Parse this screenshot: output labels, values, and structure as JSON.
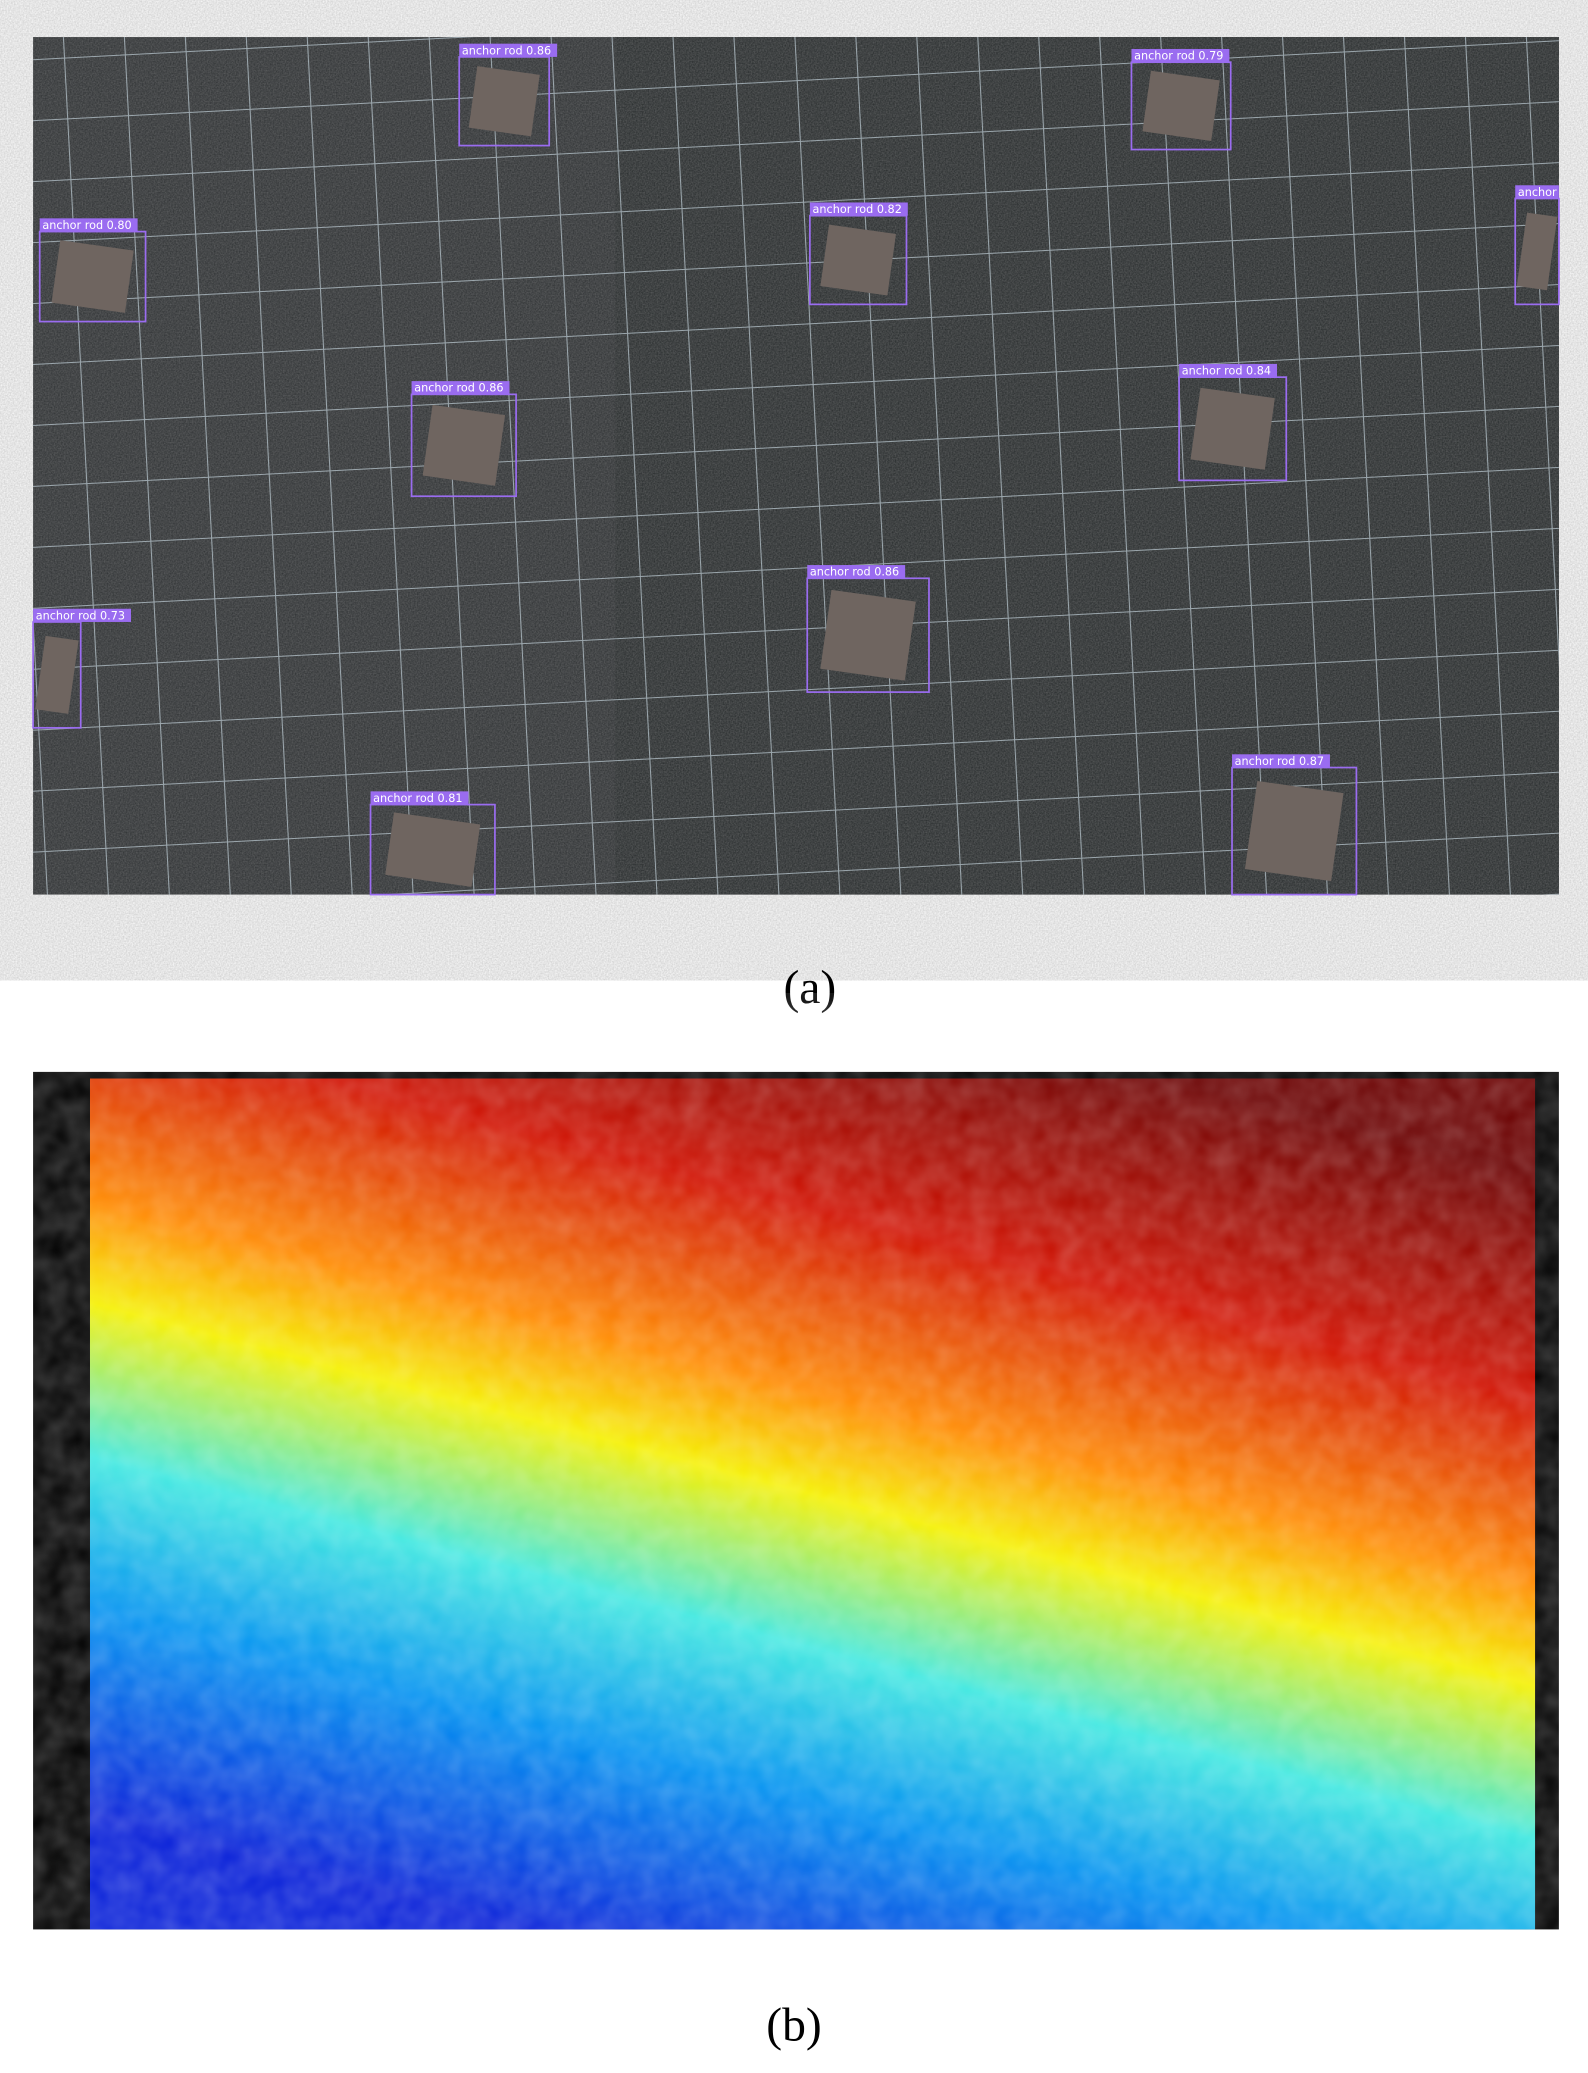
{
  "figure": {
    "panels": [
      {
        "caption": "(a)",
        "detections": [
          "anchor rod 0.86",
          "anchor rod 0.79",
          "anchor rod 0.80",
          "anchor rod 0.82",
          "anchor",
          "anchor rod 0.86",
          "anchor rod 0.84",
          "anchor rod 0.73",
          "anchor rod 0.86",
          "anchor rod 0.81",
          "anchor rod 0.87"
        ]
      },
      {
        "caption": "(b)"
      }
    ]
  }
}
